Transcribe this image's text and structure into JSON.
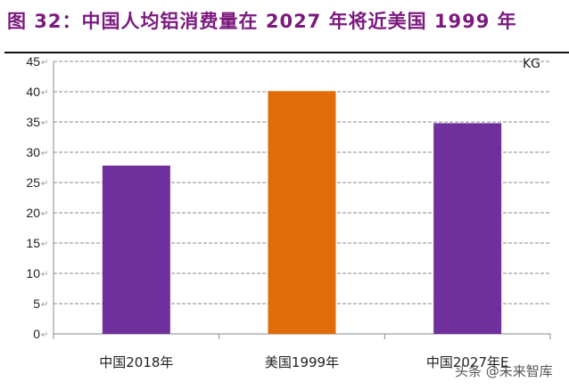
{
  "title": "图 32：中国人均铝消费量在 2027 年将近美国 1999 年",
  "watermark": "头条 @未来智库",
  "chart_data": {
    "type": "bar",
    "title": "",
    "unit_label": "KG",
    "categories": [
      "中国2018年",
      "美国1999年",
      "中国2027年E"
    ],
    "values": [
      27.8,
      40.1,
      34.8
    ],
    "colors": [
      "#6f2f9c",
      "#e06c0a",
      "#6f2f9c"
    ],
    "ylim": [
      0,
      45
    ],
    "yticks": [
      0,
      5,
      10,
      15,
      20,
      25,
      30,
      35,
      40,
      45
    ],
    "grid": true,
    "grid_style": "dashed",
    "legend": "none"
  }
}
